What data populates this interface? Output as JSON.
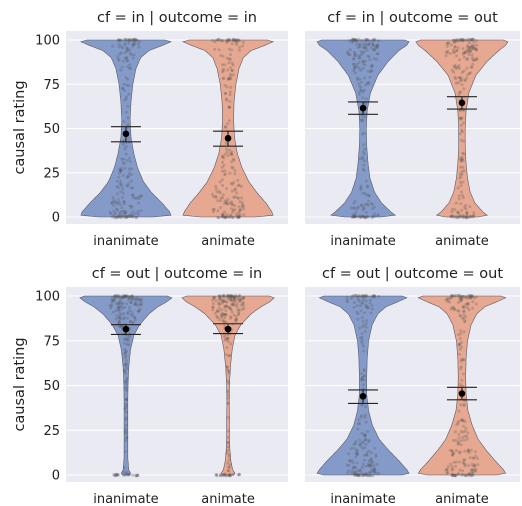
{
  "chart_data": [
    {
      "type": "violin",
      "title": "cf = in | outcome = in",
      "xlabel": "",
      "ylabel": "causal rating",
      "ylim": [
        0,
        100
      ],
      "yticks": [
        0,
        25,
        50,
        75,
        100
      ],
      "categories": [
        "inanimate",
        "animate"
      ],
      "means": [
        47,
        44.5
      ],
      "ci": [
        [
          42.5,
          51
        ],
        [
          40,
          48.5
        ]
      ],
      "grid": true
    },
    {
      "type": "violin",
      "title": "cf = in | outcome = out",
      "xlabel": "",
      "ylabel": "",
      "ylim": [
        0,
        100
      ],
      "yticks": [
        0,
        25,
        50,
        75,
        100
      ],
      "categories": [
        "inanimate",
        "animate"
      ],
      "means": [
        61.5,
        64.5
      ],
      "ci": [
        [
          58,
          65
        ],
        [
          61,
          68
        ]
      ],
      "grid": true
    },
    {
      "type": "violin",
      "title": "cf = out | outcome = in",
      "xlabel": "",
      "ylabel": "causal rating",
      "ylim": [
        0,
        100
      ],
      "yticks": [
        0,
        25,
        50,
        75,
        100
      ],
      "categories": [
        "inanimate",
        "animate"
      ],
      "means": [
        81.5,
        81.5
      ],
      "ci": [
        [
          78.5,
          84
        ],
        [
          79,
          84.5
        ]
      ],
      "grid": true
    },
    {
      "type": "violin",
      "title": "cf = out | outcome = out",
      "xlabel": "",
      "ylabel": "",
      "ylim": [
        0,
        100
      ],
      "yticks": [
        0,
        25,
        50,
        75,
        100
      ],
      "categories": [
        "inanimate",
        "animate"
      ],
      "means": [
        44,
        45.5
      ],
      "ci": [
        [
          40,
          47.5
        ],
        [
          42,
          49
        ]
      ],
      "grid": true
    }
  ],
  "colors": {
    "inanimate": "#7e96c6",
    "animate": "#e6a48a",
    "panel_background": "#eaeaf2",
    "grid": "#ffffff"
  }
}
